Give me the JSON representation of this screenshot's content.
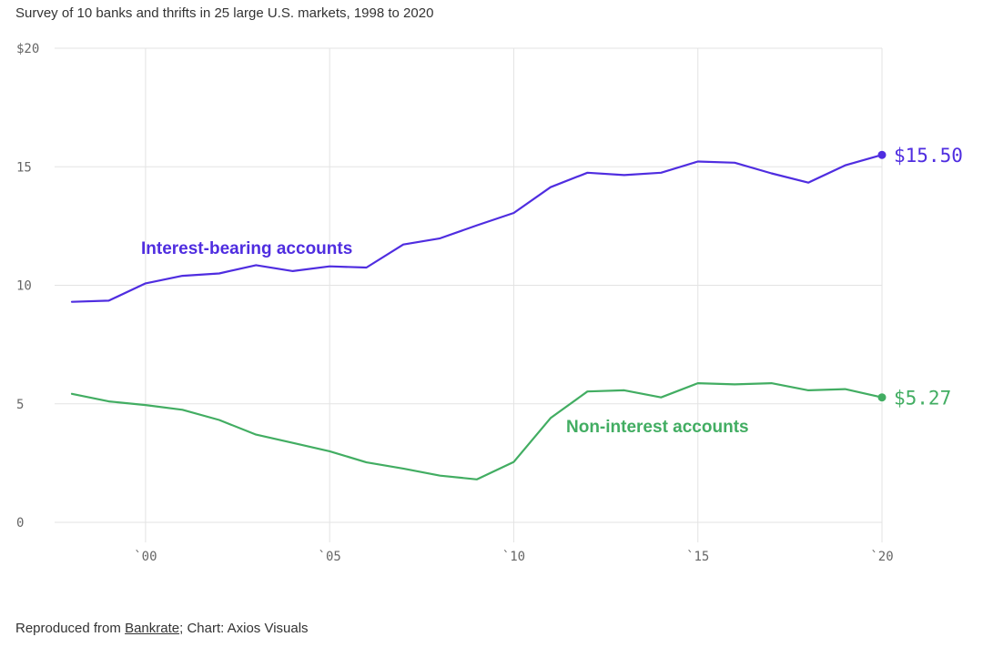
{
  "header": {
    "subtitle": "Survey of 10 banks and thrifts in 25 large U.S. markets, 1998 to 2020"
  },
  "footer": {
    "prefix": "Reproduced from ",
    "source_link": "Bankrate",
    "suffix": "; Chart: Axios Visuals"
  },
  "chart_data": {
    "type": "line",
    "title": "",
    "xlabel": "",
    "ylabel": "",
    "xlim": [
      1998,
      2020
    ],
    "ylim": [
      0,
      20
    ],
    "grid": true,
    "x": [
      1998,
      1999,
      2000,
      2001,
      2002,
      2003,
      2004,
      2005,
      2006,
      2007,
      2008,
      2009,
      2010,
      2011,
      2012,
      2013,
      2014,
      2015,
      2016,
      2017,
      2018,
      2019,
      2020
    ],
    "x_ticks": [
      {
        "value": 2000,
        "label": "`00"
      },
      {
        "value": 2005,
        "label": "`05"
      },
      {
        "value": 2010,
        "label": "`10"
      },
      {
        "value": 2015,
        "label": "`15"
      },
      {
        "value": 2020,
        "label": "`20"
      }
    ],
    "y_ticks": [
      {
        "value": 0,
        "label": "0"
      },
      {
        "value": 5,
        "label": "5"
      },
      {
        "value": 10,
        "label": "10"
      },
      {
        "value": 15,
        "label": "15"
      },
      {
        "value": 20,
        "label": "$20"
      }
    ],
    "series": [
      {
        "name": "Interest-bearing accounts",
        "color": "#4f2de0",
        "values": [
          9.3,
          9.35,
          10.08,
          10.4,
          10.5,
          10.85,
          10.6,
          10.8,
          10.75,
          11.72,
          11.98,
          12.53,
          13.05,
          14.14,
          14.75,
          14.65,
          14.75,
          15.22,
          15.17,
          14.72,
          14.33,
          15.06,
          15.5
        ],
        "end_label": "$15.50"
      },
      {
        "name": "Non-interest accounts",
        "color": "#42ad62",
        "values": [
          5.42,
          5.1,
          4.95,
          4.75,
          4.32,
          3.7,
          3.35,
          3.0,
          2.53,
          2.27,
          1.97,
          1.81,
          2.55,
          4.4,
          5.52,
          5.57,
          5.27,
          5.87,
          5.82,
          5.87,
          5.57,
          5.62,
          5.27
        ],
        "end_label": "$5.27"
      }
    ]
  }
}
